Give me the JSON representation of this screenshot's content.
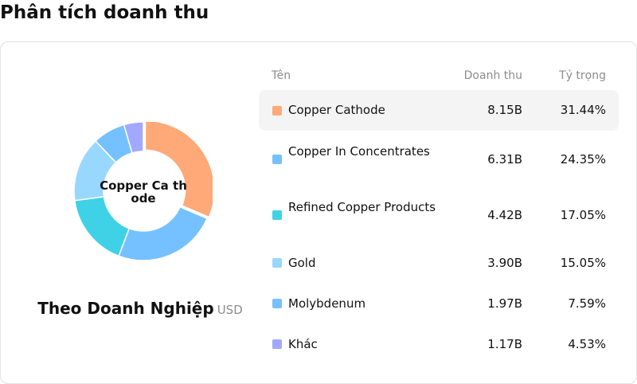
{
  "page": {
    "title": "Phân tích doanh thu"
  },
  "chart_data": {
    "type": "pie",
    "variant": "donut",
    "center_label": "Copper Ca thode",
    "caption": "Theo Doanh Nghiệp",
    "unit": "USD",
    "columns": {
      "name": "Tên",
      "revenue": "Doanh thu",
      "share": "Tỷ trọng"
    },
    "series": [
      {
        "name": "Copper Cathode",
        "revenue": "8.15B",
        "share_label": "31.44%",
        "value": 31.44,
        "color": "#ffa978"
      },
      {
        "name": "Copper In Concentrates",
        "revenue": "6.31B",
        "share_label": "24.35%",
        "value": 24.35,
        "color": "#75c1ff"
      },
      {
        "name": "Refined Copper Products",
        "revenue": "4.42B",
        "share_label": "17.05%",
        "value": 17.05,
        "color": "#3fd2e6"
      },
      {
        "name": "Gold",
        "revenue": "3.90B",
        "share_label": "15.05%",
        "value": 15.05,
        "color": "#98d8ff"
      },
      {
        "name": "Molybdenum",
        "revenue": "1.97B",
        "share_label": "7.59%",
        "value": 7.59,
        "color": "#75c1ff"
      },
      {
        "name": "Khác",
        "revenue": "1.17B",
        "share_label": "4.53%",
        "value": 4.53,
        "color": "#a3a8ff"
      }
    ],
    "highlighted": "Copper Cathode"
  }
}
